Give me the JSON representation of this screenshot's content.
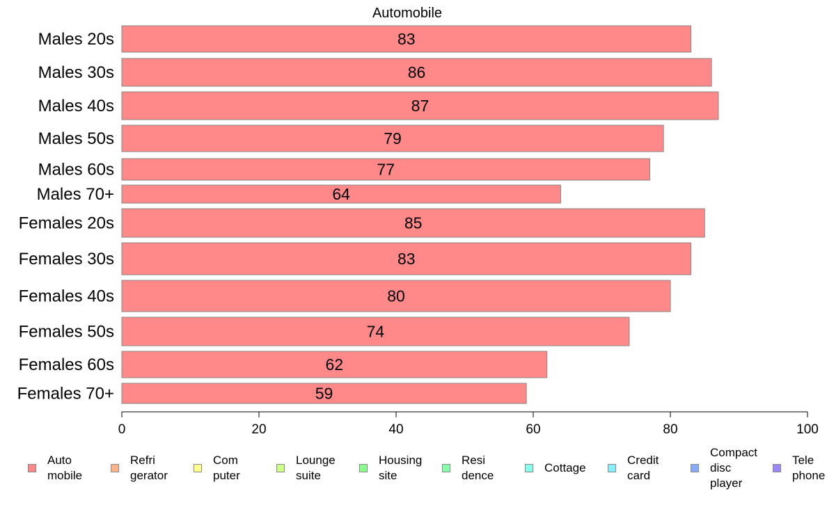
{
  "chart_data": {
    "type": "bar",
    "orientation": "horizontal",
    "title": "Automobile",
    "xlabel": "",
    "ylabel": "",
    "xlim": [
      0,
      100
    ],
    "xticks": [
      "0",
      "20",
      "40",
      "60",
      "80",
      "100"
    ],
    "grid": false,
    "bar_color": "#ff8888",
    "bar_edge_color": "#888888",
    "categories": [
      "Males 20s",
      "Males 30s",
      "Males 40s",
      "Males 50s",
      "Males 60s",
      "Males 70+",
      "Females 20s",
      "Females 30s",
      "Females 40s",
      "Females 50s",
      "Females 60s",
      "Females 70+"
    ],
    "values": [
      83,
      86,
      87,
      79,
      77,
      64,
      85,
      83,
      80,
      74,
      62,
      59
    ],
    "value_labels": [
      "83",
      "86",
      "87",
      "79",
      "77",
      "64",
      "85",
      "83",
      "80",
      "74",
      "62",
      "59"
    ],
    "legend": {
      "placement": "bottom",
      "entries": [
        {
          "label": "Auto\nmobile",
          "color": "#ff8888"
        },
        {
          "label": "Refri\ngerator",
          "color": "#ffb388"
        },
        {
          "label": "Com\nputer",
          "color": "#ffff88"
        },
        {
          "label": "Lounge\nsuite",
          "color": "#ccff88"
        },
        {
          "label": "Housing\nsite",
          "color": "#88ff88"
        },
        {
          "label": "Resi\ndence",
          "color": "#88ffaa"
        },
        {
          "label": "Cottage",
          "color": "#88ffee"
        },
        {
          "label": "Credit\ncard",
          "color": "#88eeff"
        },
        {
          "label": "Compact\ndisc\nplayer",
          "color": "#88aaff"
        },
        {
          "label": "Tele\nphone",
          "color": "#9988ff"
        }
      ]
    }
  }
}
